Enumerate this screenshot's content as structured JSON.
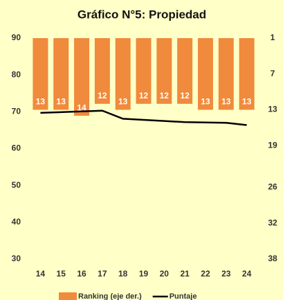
{
  "chart_data": {
    "type": "bar_line",
    "title": "Gráfico N°5: Propiedad",
    "categories": [
      "14",
      "15",
      "16",
      "17",
      "18",
      "19",
      "20",
      "21",
      "22",
      "23",
      "24"
    ],
    "series": [
      {
        "name": "Ranking (eje der.)",
        "type": "bar",
        "axis": "y2",
        "color": "#f08a3c",
        "values": [
          13,
          13,
          14,
          12,
          13,
          12,
          12,
          12,
          13,
          13,
          13
        ]
      },
      {
        "name": "Puntaje",
        "type": "line",
        "axis": "y",
        "color": "#000000",
        "values": [
          69.7,
          69.9,
          70.1,
          70.3,
          68.1,
          67.8,
          67.5,
          67.2,
          67.1,
          67.0,
          66.4
        ]
      }
    ],
    "ylim": [
      30,
      90
    ],
    "yticks": [
      30,
      40,
      50,
      60,
      70,
      80,
      90
    ],
    "y2lim": [
      38,
      1
    ],
    "y2ticks": [
      38,
      32,
      26,
      19,
      13,
      7,
      1
    ],
    "grid": false,
    "legend": "bottom"
  }
}
